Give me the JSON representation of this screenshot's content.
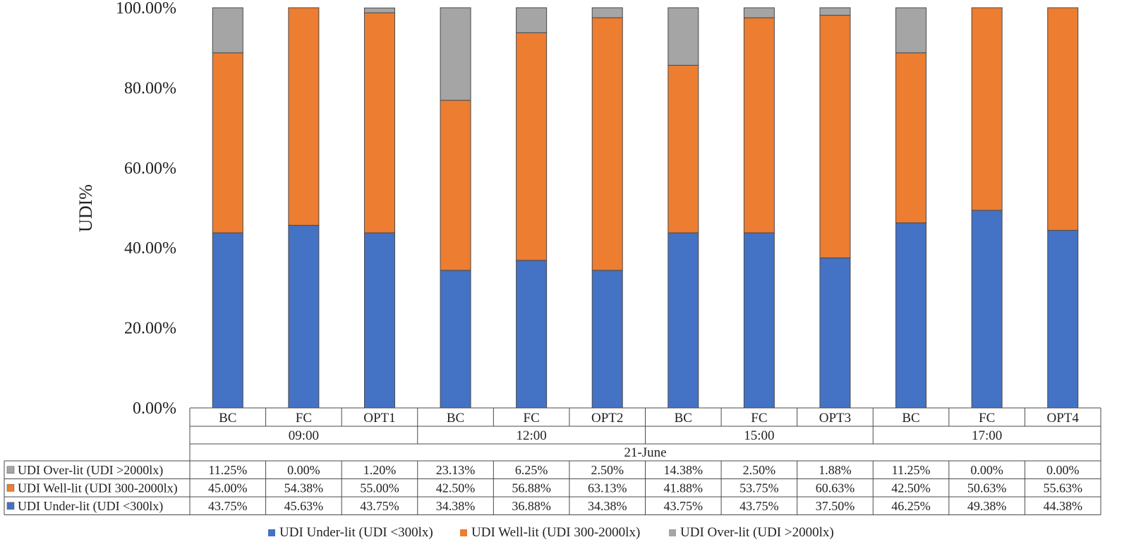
{
  "chart_data": {
    "type": "bar",
    "stacked": true,
    "ylabel": "UDI%",
    "ylim": [
      0,
      100
    ],
    "yticks": [
      0,
      20,
      40,
      60,
      80,
      100
    ],
    "ytick_labels": [
      "0.00%",
      "20.00%",
      "40.00%",
      "60.00%",
      "80.00%",
      "100.00%"
    ],
    "categories": [
      "BC",
      "FC",
      "OPT1",
      "BC",
      "FC",
      "OPT2",
      "BC",
      "FC",
      "OPT3",
      "BC",
      "FC",
      "OPT4"
    ],
    "groups": [
      {
        "label": "09:00",
        "count": 3
      },
      {
        "label": "12:00",
        "count": 3
      },
      {
        "label": "15:00",
        "count": 3
      },
      {
        "label": "17:00",
        "count": 3
      }
    ],
    "super_group": "21-June",
    "series": [
      {
        "name": "UDI Under-lit (UDI <300lx)",
        "color": "#4472C4",
        "values": [
          43.75,
          45.63,
          43.75,
          34.38,
          36.88,
          34.38,
          43.75,
          43.75,
          37.5,
          46.25,
          49.38,
          44.38
        ],
        "labels": [
          "43.75%",
          "45.63%",
          "43.75%",
          "34.38%",
          "36.88%",
          "34.38%",
          "43.75%",
          "43.75%",
          "37.50%",
          "46.25%",
          "49.38%",
          "44.38%"
        ]
      },
      {
        "name": "UDI Well-lit (UDI 300-2000lx)",
        "color": "#ED7D31",
        "values": [
          45.0,
          54.38,
          55.0,
          42.5,
          56.88,
          63.13,
          41.88,
          53.75,
          60.63,
          42.5,
          50.63,
          55.63
        ],
        "labels": [
          "45.00%",
          "54.38%",
          "55.00%",
          "42.50%",
          "56.88%",
          "63.13%",
          "41.88%",
          "53.75%",
          "60.63%",
          "42.50%",
          "50.63%",
          "55.63%"
        ]
      },
      {
        "name": "UDI Over-lit (UDI >2000lx)",
        "color": "#A5A5A5",
        "values": [
          11.25,
          0.0,
          1.2,
          23.13,
          6.25,
          2.5,
          14.38,
          2.5,
          1.88,
          11.25,
          0.0,
          0.0
        ],
        "labels": [
          "11.25%",
          "0.00%",
          "1.20%",
          "23.13%",
          "6.25%",
          "2.50%",
          "14.38%",
          "2.50%",
          "1.88%",
          "11.25%",
          "0.00%",
          "0.00%"
        ]
      }
    ],
    "table_row_order": [
      2,
      1,
      0
    ],
    "legend_position": "bottom",
    "grid": false
  }
}
